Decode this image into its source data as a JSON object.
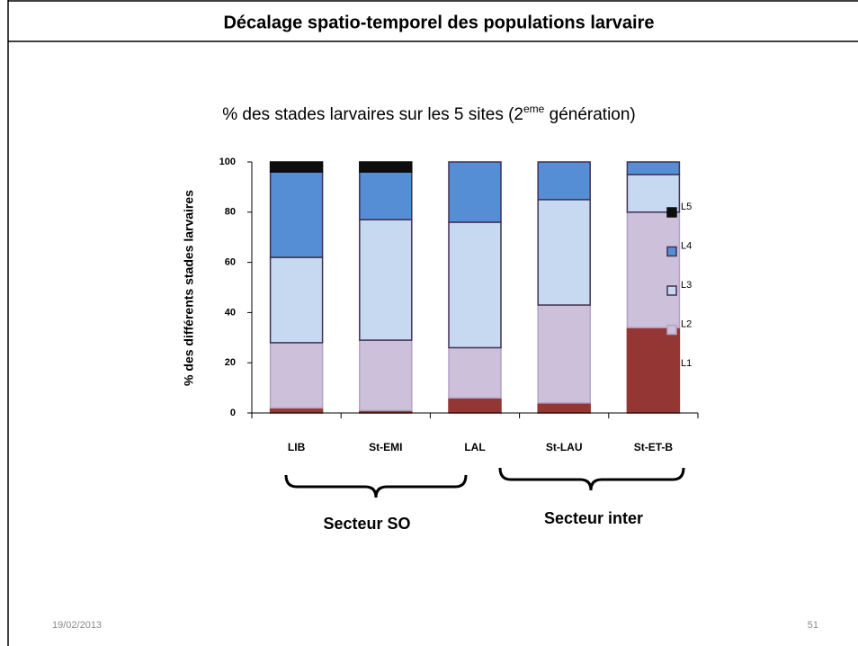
{
  "slide": {
    "title": "Décalage spatio-temporel des populations larvaire",
    "date": "19/02/2013",
    "page": "51"
  },
  "chart_data": {
    "type": "stacked_bar",
    "title": [
      "% des stades larvaires sur les 5 sites (2",
      "eme",
      " génération)"
    ],
    "y_label": "% des différents stades larvaires",
    "categories": [
      "LIB",
      "St-EMI",
      "LAL",
      "St-LAU",
      "St-ET-B"
    ],
    "series": [
      {
        "name": "L1",
        "color": "#943634",
        "values": [
          2,
          1,
          6,
          4,
          34
        ]
      },
      {
        "name": "L2",
        "color": "#ccc0da",
        "values": [
          26,
          28,
          20,
          39,
          46
        ]
      },
      {
        "name": "L3",
        "color": "#c6d9f1",
        "values": [
          34,
          48,
          50,
          42,
          15
        ]
      },
      {
        "name": "L4",
        "color": "#558ed5",
        "values": [
          34,
          19,
          24,
          15,
          5
        ]
      },
      {
        "name": "L5",
        "color": "#0d0d0d",
        "values": [
          4,
          4,
          0,
          0,
          0
        ]
      }
    ],
    "ylim": [
      0,
      100
    ],
    "yticks": [
      0,
      20,
      40,
      60,
      80,
      100
    ],
    "legend": "right",
    "annotations": [
      "Secteur SO",
      "Secteur inter"
    ]
  }
}
